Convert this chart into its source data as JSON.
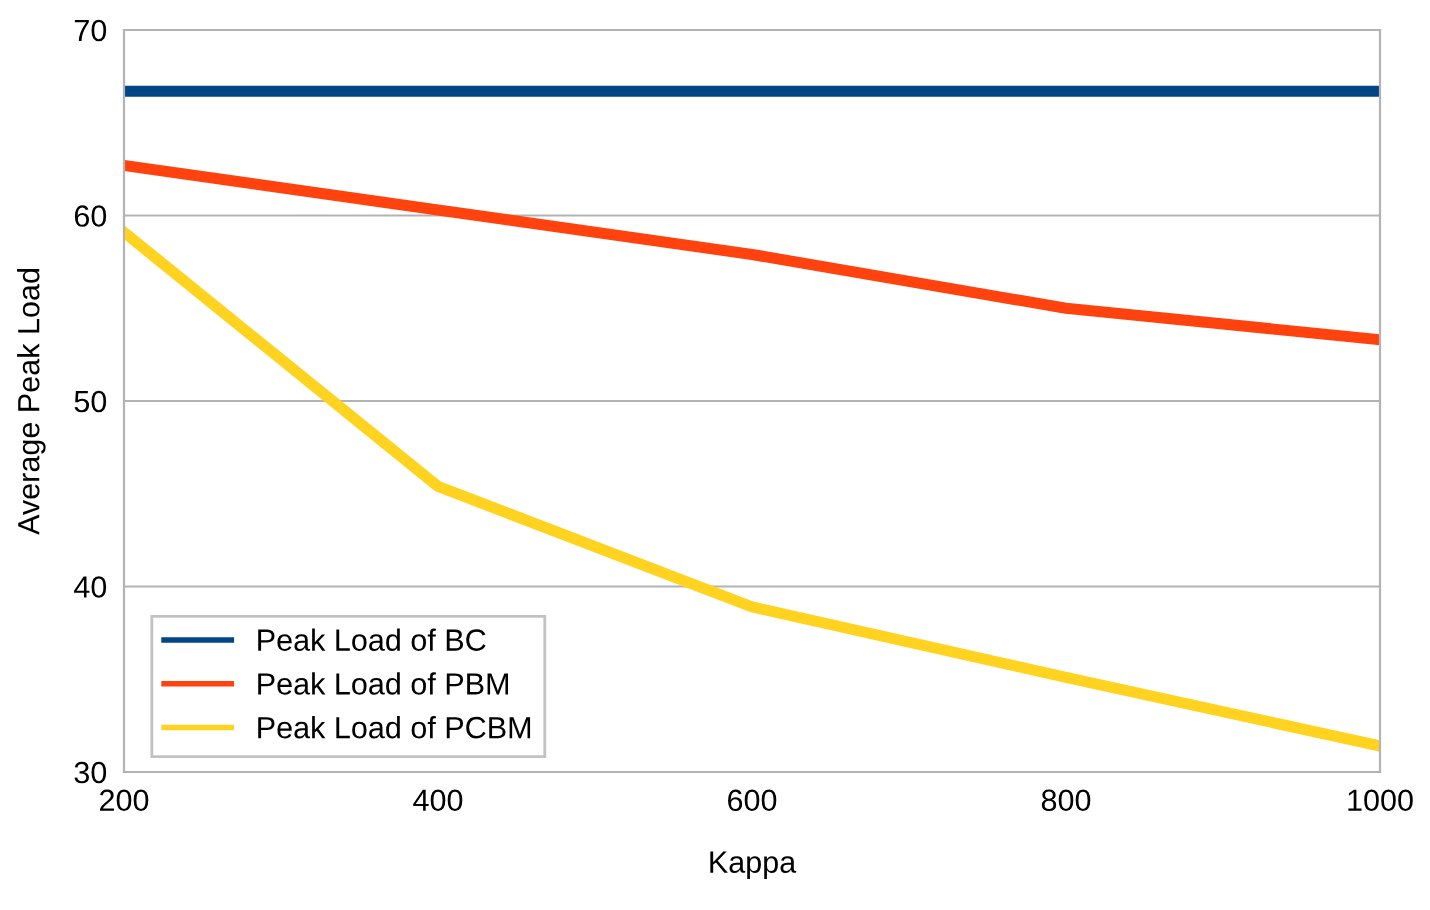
{
  "chart_data": {
    "type": "line",
    "xlabel": "Kappa",
    "ylabel": "Average Peak Load",
    "x": [
      200,
      400,
      600,
      800,
      1000
    ],
    "series": [
      {
        "name": "Peak Load of BC",
        "color": "#004586",
        "values": [
          66.7,
          66.7,
          66.7,
          66.7,
          66.7
        ]
      },
      {
        "name": "Peak Load of PBM",
        "color": "#ff420e",
        "values": [
          62.7,
          60.3,
          57.9,
          55.0,
          53.3
        ]
      },
      {
        "name": "Peak Load of PCBM",
        "color": "#ffd320",
        "values": [
          59.1,
          45.4,
          38.9,
          35.1,
          31.4
        ]
      }
    ],
    "xlim": [
      200,
      1000
    ],
    "xticks": [
      200,
      400,
      600,
      800,
      1000
    ],
    "ylim": [
      30,
      70
    ],
    "yticks": [
      30,
      40,
      50,
      60,
      70
    ],
    "grid": "y",
    "legend": "bottom left",
    "marker": "none",
    "line_style": "solid"
  }
}
